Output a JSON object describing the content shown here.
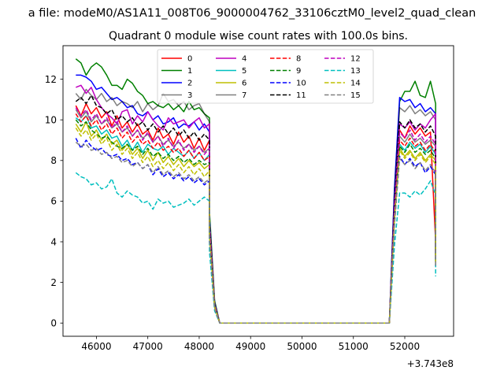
{
  "figure": {
    "suptitle": "a file: modeM0/AS1A11_008T06_9000004762_33106cztM0_level2_quad_clean",
    "offset_label": "+3.743e8"
  },
  "chart_data": {
    "type": "line",
    "title": "Quadrant 0 module wise count rates with 100.0s bins.",
    "xlabel": "",
    "ylabel": "",
    "x_offset": 374300000,
    "xlim": [
      45350,
      52950
    ],
    "ylim": [
      -0.65,
      13.65
    ],
    "x_ticks": [
      46000,
      47000,
      48000,
      49000,
      50000,
      51000,
      52000
    ],
    "y_ticks": [
      0,
      2,
      4,
      6,
      8,
      10,
      12
    ],
    "grid": false,
    "legend": {
      "placement": "upper center",
      "columns": 4
    },
    "segments": {
      "first_start": 45600,
      "first_end": 48200,
      "drop_x": [
        48200,
        48300,
        48400
      ],
      "zero_start": 48400,
      "zero_end": 51700,
      "rise_x": [
        51700,
        51800,
        51900
      ],
      "second_start": 51900,
      "second_end": 52500,
      "final_x": [
        52600,
        52600
      ],
      "step": 100
    },
    "series": [
      {
        "name": "0",
        "color": "#ff0000",
        "dash": "solid",
        "first": [
          10.7,
          10.2,
          10.8,
          10.3,
          10.6,
          10.1,
          10.4,
          9.7,
          10.2,
          9.6,
          9.9,
          9.4,
          9.8,
          9.3,
          9.5,
          9.0,
          9.6,
          9.1,
          9.3,
          8.8,
          9.4,
          8.9,
          9.2,
          8.6,
          9.1,
          8.5,
          9.0
        ],
        "transition": [
          5.0,
          0.9,
          0.0
        ],
        "second": [
          9.5,
          9.1,
          9.7,
          9.3,
          9.6,
          9.2,
          9.4
        ],
        "tail": [
          4.0,
          3.3
        ]
      },
      {
        "name": "1",
        "color": "#008000",
        "dash": "solid",
        "first": [
          13.0,
          12.8,
          12.2,
          12.6,
          12.8,
          12.6,
          12.2,
          11.7,
          11.7,
          11.5,
          12.0,
          11.8,
          11.4,
          11.2,
          10.8,
          10.9,
          10.7,
          10.6,
          10.8,
          10.5,
          10.7,
          10.4,
          10.9,
          10.5,
          10.6,
          10.3,
          10.1
        ],
        "transition": [
          5.5,
          1.1,
          0.0
        ],
        "second": [
          10.9,
          11.4,
          11.4,
          11.9,
          11.2,
          11.1,
          11.9
        ],
        "tail": [
          10.8,
          3.6
        ]
      },
      {
        "name": "2",
        "color": "#0000ff",
        "dash": "solid",
        "first": [
          12.2,
          12.2,
          12.1,
          11.9,
          11.5,
          11.6,
          11.3,
          11.0,
          11.1,
          10.9,
          10.6,
          10.7,
          10.3,
          10.2,
          10.4,
          10.0,
          10.2,
          9.8,
          9.9,
          10.1,
          9.6,
          9.8,
          9.7,
          9.9,
          9.5,
          9.8,
          9.4
        ],
        "transition": [
          5.2,
          1.0,
          0.0
        ],
        "second": [
          11.1,
          10.9,
          11.0,
          10.6,
          10.8,
          10.4,
          10.6
        ],
        "tail": [
          10.3,
          3.5
        ]
      },
      {
        "name": "3",
        "color": "#000000",
        "dash": "solid",
        "alpha": 0.5,
        "first": [
          11.3,
          11.0,
          11.5,
          11.2,
          11.0,
          11.3,
          10.9,
          11.1,
          10.7,
          10.9,
          10.8,
          10.6,
          10.9,
          10.4,
          10.8,
          10.5,
          10.7,
          11.3,
          10.9,
          11.0,
          10.7,
          10.9,
          10.5,
          10.7,
          10.8,
          10.3,
          9.9
        ],
        "transition": [
          5.1,
          1.0,
          0.0
        ],
        "second": [
          10.6,
          10.4,
          10.7,
          10.3,
          10.5,
          10.2,
          10.4
        ],
        "tail": [
          10.0,
          3.5
        ]
      },
      {
        "name": "4",
        "color": "#bf00bf",
        "dash": "solid",
        "first": [
          11.6,
          11.7,
          11.3,
          11.6,
          11.0,
          10.6,
          10.3,
          10.1,
          9.8,
          10.4,
          10.5,
          9.8,
          10.2,
          9.9,
          10.4,
          10.0,
          9.7,
          9.5,
          10.1,
          9.8,
          9.9,
          10.0,
          9.6,
          9.9,
          10.1,
          9.6,
          9.8
        ],
        "transition": [
          5.0,
          0.9,
          0.0
        ],
        "second": [
          9.8,
          9.6,
          9.9,
          9.5,
          9.8,
          9.6,
          10.0
        ],
        "tail": [
          10.3,
          3.4
        ]
      },
      {
        "name": "5",
        "color": "#00bfbf",
        "dash": "solid",
        "first": [
          10.1,
          9.9,
          10.2,
          9.6,
          9.7,
          9.3,
          9.5,
          9.1,
          9.2,
          8.7,
          9.0,
          8.5,
          8.9,
          8.4,
          8.8,
          8.6,
          8.5,
          8.7,
          8.3,
          8.6,
          8.4,
          8.2,
          8.5,
          8.1,
          8.4,
          8.0,
          8.3
        ],
        "transition": [
          4.6,
          0.8,
          0.0
        ],
        "second": [
          8.8,
          8.5,
          8.9,
          8.6,
          8.8,
          8.4,
          8.7
        ],
        "tail": [
          8.3,
          3.1
        ]
      },
      {
        "name": "6",
        "color": "#bfbf00",
        "dash": "solid",
        "first": [
          9.8,
          9.4,
          9.9,
          9.2,
          9.5,
          9.0,
          9.3,
          8.8,
          9.0,
          8.5,
          8.8,
          8.3,
          8.6,
          8.1,
          8.5,
          8.0,
          8.4,
          7.9,
          8.2,
          7.8,
          8.1,
          7.7,
          8.0,
          7.7,
          7.9,
          7.6,
          7.8
        ],
        "transition": [
          4.4,
          0.8,
          0.0
        ],
        "second": [
          8.6,
          8.2,
          8.5,
          8.1,
          8.4,
          8.0,
          8.3
        ],
        "tail": [
          8.0,
          3.0
        ]
      },
      {
        "name": "7",
        "color": "#808080",
        "dash": "solid",
        "first": [
          10.5,
          10.1,
          10.4,
          9.9,
          10.2,
          9.8,
          10.0,
          9.6,
          9.8,
          9.4,
          9.6,
          9.2,
          9.5,
          9.1,
          9.3,
          8.9,
          9.2,
          8.8,
          9.0,
          8.7,
          8.9,
          8.6,
          8.8,
          8.5,
          8.7,
          8.4,
          8.6
        ],
        "transition": [
          4.8,
          0.9,
          0.0
        ],
        "second": [
          9.2,
          8.9,
          9.3,
          8.9,
          9.1,
          8.8,
          9.0
        ],
        "tail": [
          8.7,
          3.2
        ]
      },
      {
        "name": "8",
        "color": "#ff0000",
        "dash": "dashed",
        "first": [
          10.3,
          9.9,
          10.2,
          9.7,
          10.0,
          9.5,
          9.8,
          9.3,
          9.6,
          9.1,
          9.4,
          8.9,
          9.2,
          8.8,
          9.0,
          8.6,
          8.9,
          8.5,
          8.7,
          8.4,
          8.6,
          8.2,
          8.5,
          8.1,
          8.4,
          8.0,
          8.2
        ],
        "transition": [
          4.6,
          0.8,
          0.0
        ],
        "second": [
          9.0,
          8.7,
          9.1,
          8.7,
          8.9,
          8.5,
          8.8
        ],
        "tail": [
          8.4,
          3.1
        ]
      },
      {
        "name": "9",
        "color": "#008000",
        "dash": "dashed",
        "first": [
          10.0,
          9.7,
          9.9,
          9.5,
          9.3,
          9.1,
          9.2,
          8.9,
          8.7,
          8.6,
          8.8,
          8.5,
          8.7,
          8.3,
          8.6,
          8.2,
          8.4,
          8.1,
          8.3,
          8.0,
          8.2,
          7.9,
          8.1,
          7.8,
          8.0,
          7.8,
          7.9
        ],
        "transition": [
          4.5,
          0.8,
          0.0
        ],
        "second": [
          8.7,
          8.4,
          8.8,
          8.4,
          8.6,
          8.3,
          8.5
        ],
        "tail": [
          8.1,
          3.0
        ]
      },
      {
        "name": "10",
        "color": "#0000ff",
        "dash": "dashed",
        "first": [
          9.1,
          8.6,
          9.0,
          8.7,
          8.5,
          8.6,
          8.3,
          8.2,
          8.3,
          8.0,
          8.1,
          7.8,
          7.9,
          7.6,
          7.8,
          7.3,
          7.6,
          7.2,
          7.4,
          7.1,
          7.3,
          7.0,
          7.2,
          6.9,
          7.1,
          6.8,
          7.0
        ],
        "transition": [
          4.0,
          0.7,
          0.0
        ],
        "second": [
          8.2,
          7.8,
          8.1,
          7.7,
          7.9,
          7.4,
          7.7
        ],
        "tail": [
          7.3,
          2.8
        ]
      },
      {
        "name": "11",
        "color": "#000000",
        "dash": "dashed",
        "first": [
          10.9,
          11.1,
          10.8,
          11.2,
          10.7,
          10.6,
          10.3,
          10.5,
          10.0,
          10.2,
          9.9,
          10.1,
          9.7,
          9.9,
          9.5,
          9.8,
          9.4,
          9.7,
          9.3,
          9.6,
          9.2,
          9.5,
          9.1,
          9.4,
          9.0,
          9.3,
          9.0
        ],
        "transition": [
          5.0,
          0.9,
          0.0
        ],
        "second": [
          9.9,
          9.6,
          10.0,
          9.6,
          9.8,
          9.4,
          9.7
        ],
        "tail": [
          9.2,
          3.4
        ]
      },
      {
        "name": "12",
        "color": "#bf00bf",
        "dash": "dashed",
        "first": [
          10.6,
          10.2,
          10.5,
          10.0,
          10.3,
          9.8,
          10.1,
          9.6,
          9.9,
          9.4,
          9.7,
          9.2,
          9.5,
          9.0,
          9.4,
          8.9,
          9.2,
          8.7,
          9.1,
          8.6,
          9.0,
          8.5,
          8.8,
          8.4,
          8.7,
          8.3,
          8.6
        ],
        "transition": [
          4.7,
          0.9,
          0.0
        ],
        "second": [
          9.4,
          9.1,
          9.5,
          9.0,
          9.3,
          8.9,
          9.2
        ],
        "tail": [
          8.8,
          3.2
        ]
      },
      {
        "name": "13",
        "color": "#00bfbf",
        "dash": "dashed",
        "first": [
          7.4,
          7.2,
          7.1,
          6.8,
          6.9,
          6.6,
          6.7,
          7.1,
          6.4,
          6.2,
          6.5,
          6.3,
          6.2,
          5.9,
          6.0,
          5.6,
          6.1,
          5.9,
          6.0,
          5.7,
          5.8,
          5.9,
          6.1,
          5.8,
          6.0,
          6.2,
          6.0
        ],
        "transition": [
          3.5,
          0.6,
          0.0
        ],
        "second": [
          6.4,
          6.4,
          6.2,
          6.5,
          6.3,
          6.6,
          7.0
        ],
        "tail": [
          6.3,
          2.3
        ]
      },
      {
        "name": "14",
        "color": "#bfbf00",
        "dash": "dashed",
        "first": [
          9.6,
          9.2,
          9.5,
          9.0,
          9.3,
          8.8,
          9.1,
          8.5,
          8.8,
          8.3,
          8.6,
          8.1,
          8.4,
          7.9,
          8.2,
          7.7,
          8.0,
          7.6,
          7.9,
          7.5,
          7.8,
          7.4,
          7.7,
          7.3,
          7.6,
          7.2,
          7.5
        ],
        "transition": [
          4.3,
          0.8,
          0.0
        ],
        "second": [
          8.5,
          8.1,
          8.4,
          8.0,
          8.3,
          7.9,
          8.2
        ],
        "tail": [
          7.8,
          2.9
        ]
      },
      {
        "name": "15",
        "color": "#808080",
        "dash": "dashed",
        "first": [
          8.9,
          8.7,
          8.8,
          8.5,
          8.6,
          8.3,
          8.4,
          8.1,
          8.2,
          7.9,
          8.0,
          7.7,
          7.9,
          7.6,
          7.8,
          7.4,
          7.7,
          7.3,
          7.5,
          7.2,
          7.4,
          7.1,
          7.3,
          7.0,
          7.2,
          6.9,
          7.1
        ],
        "transition": [
          4.1,
          0.7,
          0.0
        ],
        "second": [
          8.1,
          7.8,
          8.0,
          7.6,
          7.9,
          7.5,
          7.8
        ],
        "tail": [
          7.4,
          2.8
        ]
      }
    ]
  }
}
